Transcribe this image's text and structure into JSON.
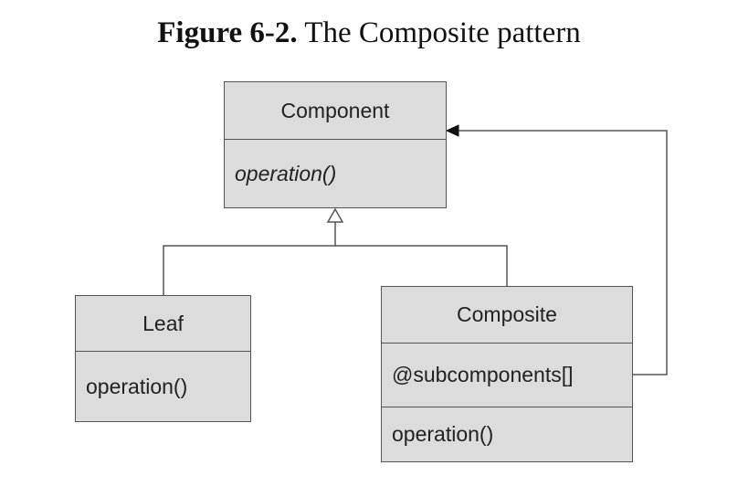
{
  "caption": {
    "label": "Figure 6-2.",
    "title": "The Composite pattern"
  },
  "classes": {
    "component": {
      "name": "Component",
      "operation": "operation()"
    },
    "leaf": {
      "name": "Leaf",
      "operation": "operation()"
    },
    "composite": {
      "name": "Composite",
      "attribute": "@subcomponents[]",
      "operation": "operation()"
    }
  },
  "relationships": [
    {
      "type": "generalization",
      "from": "Leaf",
      "to": "Component"
    },
    {
      "type": "generalization",
      "from": "Composite",
      "to": "Component"
    },
    {
      "type": "association",
      "from": "Composite",
      "to": "Component"
    }
  ]
}
